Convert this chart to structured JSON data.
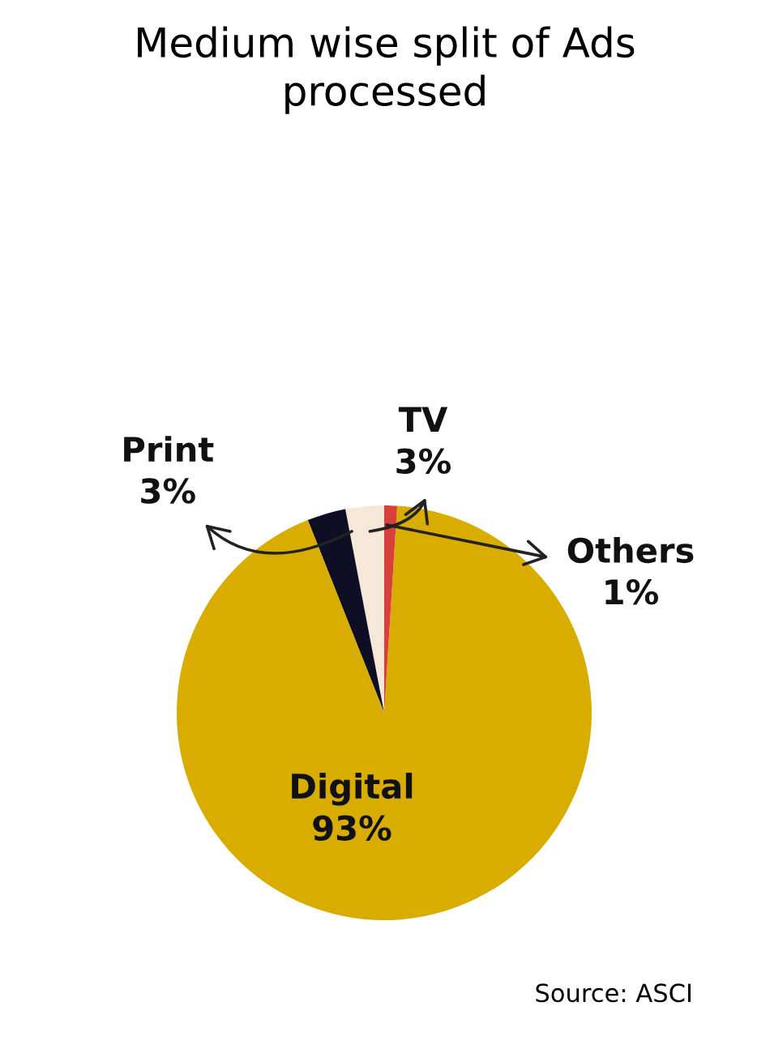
{
  "chart_data": {
    "type": "pie",
    "title": "Medium wise split of Ads\nprocessed",
    "categories": [
      "TV",
      "Print",
      "Digital",
      "Others"
    ],
    "values": [
      3,
      3,
      93,
      1
    ],
    "colors": [
      "#f6e7d8",
      "#0e0e24",
      "#d8ad00",
      "#d9403a"
    ],
    "value_labels": [
      "3%",
      "3%",
      "93%",
      "1%"
    ],
    "annotations": [
      "Source: ASCI"
    ]
  }
}
